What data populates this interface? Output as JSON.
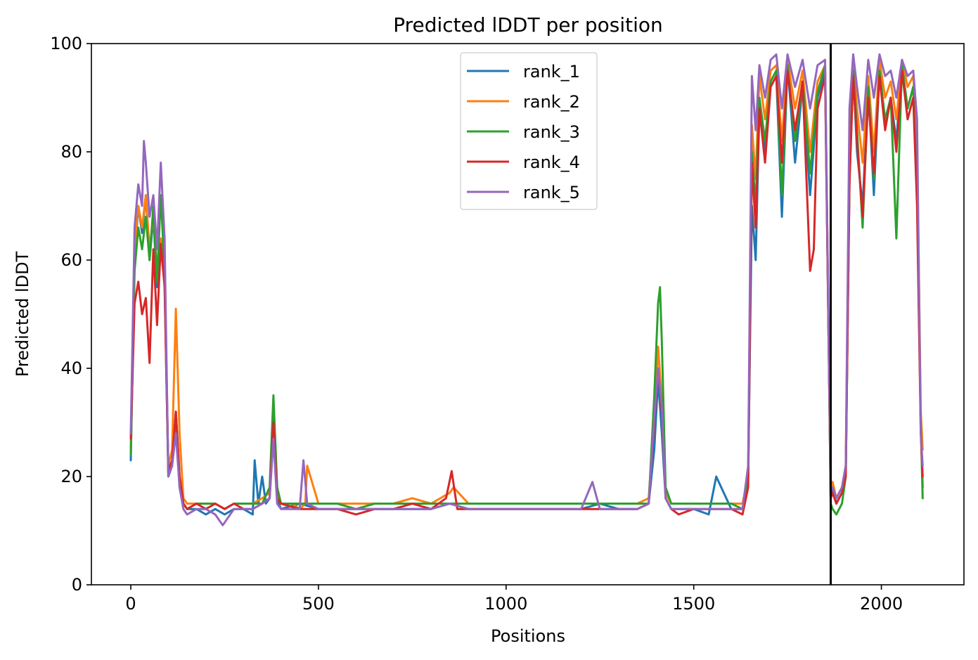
{
  "chart_data": {
    "type": "line",
    "title": "Predicted lDDT per position",
    "xlabel": "Positions",
    "ylabel": "Predicted lDDT",
    "xlim": [
      -105,
      2220
    ],
    "ylim": [
      0,
      100
    ],
    "xticks": [
      0,
      500,
      1000,
      1500,
      2000
    ],
    "yticks": [
      0,
      20,
      40,
      60,
      80,
      100
    ],
    "xtick_labels": [
      "0",
      "500",
      "1000",
      "1500",
      "2000"
    ],
    "ytick_labels": [
      "0",
      "20",
      "40",
      "60",
      "80",
      "100"
    ],
    "grid": false,
    "legend_position": "top-center",
    "vline_x": 1865,
    "vline_color": "#000000",
    "series": [
      {
        "name": "rank_1",
        "color": "#1f77b4",
        "x": [
          0,
          10,
          20,
          30,
          40,
          50,
          60,
          70,
          80,
          90,
          100,
          110,
          120,
          130,
          140,
          150,
          175,
          200,
          225,
          250,
          275,
          300,
          325,
          330,
          340,
          350,
          360,
          370,
          380,
          390,
          400,
          450,
          500,
          550,
          600,
          650,
          700,
          750,
          800,
          850,
          900,
          950,
          1000,
          1050,
          1100,
          1150,
          1200,
          1250,
          1300,
          1350,
          1380,
          1395,
          1405,
          1415,
          1425,
          1440,
          1460,
          1500,
          1540,
          1560,
          1600,
          1630,
          1645,
          1655,
          1665,
          1675,
          1690,
          1705,
          1720,
          1735,
          1750,
          1770,
          1790,
          1810,
          1830,
          1850,
          1865,
          1870,
          1880,
          1895,
          1905,
          1915,
          1925,
          1935,
          1950,
          1965,
          1980,
          1995,
          2010,
          2025,
          2040,
          2055,
          2070,
          2085,
          2095,
          2105,
          2110
        ],
        "y": [
          23,
          60,
          70,
          65,
          72,
          60,
          68,
          55,
          62,
          56,
          20,
          22,
          32,
          20,
          15,
          14,
          14,
          13,
          14,
          13,
          14,
          14,
          13,
          23,
          15,
          20,
          15,
          16,
          28,
          16,
          14,
          15,
          14,
          14,
          14,
          14,
          14,
          14,
          14,
          15,
          14,
          14,
          14,
          14,
          14,
          14,
          14,
          15,
          14,
          14,
          15,
          25,
          38,
          28,
          16,
          14,
          14,
          14,
          13,
          20,
          14,
          14,
          20,
          70,
          60,
          88,
          80,
          92,
          94,
          68,
          96,
          78,
          92,
          72,
          90,
          95,
          16,
          18,
          15,
          17,
          20,
          75,
          95,
          80,
          70,
          92,
          72,
          95,
          85,
          90,
          82,
          96,
          88,
          92,
          78,
          30,
          18
        ]
      },
      {
        "name": "rank_2",
        "color": "#ff7f0e",
        "x": [
          0,
          10,
          20,
          30,
          40,
          50,
          60,
          70,
          80,
          90,
          100,
          110,
          120,
          130,
          140,
          150,
          175,
          200,
          225,
          250,
          275,
          300,
          325,
          350,
          370,
          380,
          390,
          400,
          430,
          450,
          465,
          470,
          500,
          550,
          600,
          650,
          700,
          750,
          800,
          850,
          860,
          900,
          950,
          1000,
          1050,
          1100,
          1150,
          1200,
          1250,
          1300,
          1350,
          1380,
          1395,
          1405,
          1415,
          1425,
          1440,
          1460,
          1500,
          1540,
          1600,
          1630,
          1645,
          1655,
          1665,
          1675,
          1690,
          1705,
          1720,
          1735,
          1750,
          1770,
          1790,
          1810,
          1830,
          1850,
          1865,
          1870,
          1880,
          1895,
          1905,
          1915,
          1925,
          1935,
          1950,
          1965,
          1980,
          1995,
          2010,
          2025,
          2040,
          2055,
          2070,
          2085,
          2095,
          2105,
          2110
        ],
        "y": [
          25,
          62,
          70,
          66,
          72,
          62,
          68,
          58,
          64,
          58,
          22,
          25,
          51,
          28,
          16,
          15,
          15,
          14,
          15,
          14,
          15,
          15,
          15,
          16,
          17,
          30,
          18,
          15,
          15,
          14,
          15,
          22,
          15,
          15,
          15,
          15,
          15,
          16,
          15,
          17,
          18,
          15,
          15,
          15,
          15,
          15,
          15,
          15,
          15,
          15,
          15,
          16,
          30,
          44,
          34,
          17,
          15,
          15,
          15,
          15,
          15,
          15,
          20,
          85,
          75,
          94,
          86,
          95,
          96,
          82,
          97,
          88,
          95,
          80,
          93,
          96,
          18,
          19,
          16,
          18,
          22,
          80,
          97,
          88,
          78,
          94,
          80,
          97,
          90,
          93,
          86,
          97,
          92,
          94,
          82,
          32,
          25
        ]
      },
      {
        "name": "rank_3",
        "color": "#2ca02c",
        "x": [
          0,
          10,
          20,
          30,
          40,
          50,
          60,
          70,
          80,
          90,
          100,
          110,
          120,
          130,
          140,
          150,
          175,
          200,
          225,
          250,
          275,
          300,
          325,
          350,
          370,
          380,
          390,
          400,
          450,
          500,
          550,
          600,
          650,
          700,
          750,
          800,
          850,
          900,
          950,
          1000,
          1050,
          1100,
          1150,
          1200,
          1250,
          1300,
          1350,
          1380,
          1395,
          1405,
          1410,
          1415,
          1425,
          1440,
          1460,
          1500,
          1540,
          1600,
          1630,
          1645,
          1655,
          1665,
          1675,
          1690,
          1705,
          1720,
          1735,
          1750,
          1770,
          1790,
          1810,
          1830,
          1850,
          1865,
          1870,
          1880,
          1895,
          1905,
          1915,
          1925,
          1935,
          1950,
          1965,
          1980,
          1995,
          2010,
          2025,
          2040,
          2055,
          2070,
          2085,
          2095,
          2105,
          2110
        ],
        "y": [
          24,
          58,
          66,
          62,
          68,
          60,
          70,
          56,
          72,
          58,
          21,
          22,
          30,
          18,
          15,
          14,
          15,
          15,
          15,
          14,
          15,
          15,
          15,
          15,
          18,
          35,
          18,
          15,
          15,
          15,
          15,
          14,
          15,
          15,
          15,
          15,
          15,
          15,
          15,
          15,
          15,
          15,
          15,
          15,
          15,
          15,
          15,
          15,
          35,
          52,
          55,
          45,
          18,
          15,
          15,
          15,
          15,
          15,
          14,
          20,
          80,
          70,
          90,
          82,
          93,
          95,
          72,
          96,
          82,
          93,
          76,
          91,
          96,
          15,
          14,
          13,
          15,
          20,
          76,
          95,
          84,
          66,
          92,
          75,
          95,
          86,
          90,
          64,
          96,
          88,
          92,
          72,
          30,
          16
        ]
      },
      {
        "name": "rank_4",
        "color": "#d62728",
        "x": [
          0,
          10,
          20,
          30,
          40,
          50,
          60,
          70,
          80,
          90,
          100,
          110,
          120,
          130,
          140,
          150,
          175,
          200,
          225,
          250,
          275,
          300,
          325,
          350,
          370,
          380,
          390,
          400,
          450,
          500,
          550,
          600,
          650,
          700,
          750,
          800,
          840,
          855,
          870,
          900,
          950,
          1000,
          1050,
          1100,
          1150,
          1200,
          1250,
          1300,
          1350,
          1380,
          1395,
          1405,
          1415,
          1425,
          1440,
          1460,
          1500,
          1540,
          1600,
          1630,
          1645,
          1655,
          1665,
          1675,
          1690,
          1705,
          1720,
          1735,
          1750,
          1770,
          1790,
          1810,
          1820,
          1830,
          1850,
          1865,
          1870,
          1880,
          1895,
          1905,
          1915,
          1925,
          1935,
          1950,
          1965,
          1980,
          1995,
          2010,
          2025,
          2040,
          2055,
          2070,
          2085,
          2095,
          2105,
          2110
        ],
        "y": [
          27,
          52,
          56,
          50,
          53,
          41,
          62,
          48,
          63,
          55,
          21,
          23,
          32,
          20,
          15,
          14,
          15,
          14,
          15,
          14,
          15,
          14,
          14,
          15,
          16,
          30,
          16,
          15,
          14,
          14,
          14,
          13,
          14,
          14,
          15,
          14,
          16,
          21,
          14,
          14,
          14,
          14,
          14,
          14,
          14,
          14,
          14,
          14,
          14,
          15,
          30,
          40,
          32,
          16,
          14,
          13,
          14,
          14,
          14,
          13,
          18,
          78,
          66,
          88,
          78,
          92,
          94,
          78,
          95,
          84,
          93,
          58,
          62,
          88,
          94,
          16,
          17,
          15,
          17,
          20,
          74,
          94,
          82,
          68,
          90,
          76,
          94,
          84,
          90,
          80,
          95,
          86,
          90,
          70,
          28,
          20
        ]
      },
      {
        "name": "rank_5",
        "color": "#9467bd",
        "x": [
          0,
          10,
          20,
          30,
          35,
          40,
          50,
          60,
          70,
          80,
          90,
          100,
          110,
          120,
          130,
          140,
          150,
          175,
          200,
          225,
          245,
          275,
          300,
          325,
          350,
          370,
          380,
          390,
          400,
          450,
          460,
          470,
          500,
          550,
          600,
          650,
          700,
          750,
          800,
          850,
          900,
          950,
          1000,
          1050,
          1100,
          1150,
          1200,
          1230,
          1250,
          1300,
          1350,
          1380,
          1395,
          1405,
          1415,
          1425,
          1440,
          1460,
          1500,
          1540,
          1600,
          1630,
          1645,
          1655,
          1665,
          1675,
          1690,
          1705,
          1720,
          1735,
          1750,
          1770,
          1790,
          1810,
          1830,
          1850,
          1865,
          1870,
          1880,
          1895,
          1905,
          1915,
          1925,
          1935,
          1950,
          1965,
          1980,
          1995,
          2010,
          2025,
          2040,
          2055,
          2070,
          2085,
          2095,
          2105,
          2110
        ],
        "y": [
          28,
          66,
          74,
          70,
          82,
          78,
          68,
          72,
          62,
          78,
          64,
          20,
          22,
          28,
          18,
          14,
          13,
          14,
          14,
          13,
          11,
          14,
          14,
          14,
          15,
          16,
          27,
          15,
          14,
          14,
          23,
          15,
          14,
          14,
          14,
          14,
          14,
          14,
          14,
          15,
          14,
          14,
          14,
          14,
          14,
          14,
          14,
          19,
          14,
          14,
          14,
          15,
          31,
          40,
          33,
          16,
          14,
          14,
          14,
          14,
          14,
          14,
          22,
          94,
          84,
          96,
          90,
          97,
          98,
          88,
          98,
          92,
          97,
          88,
          96,
          97,
          18,
          18,
          16,
          18,
          22,
          88,
          98,
          92,
          84,
          97,
          90,
          98,
          94,
          95,
          90,
          97,
          94,
          95,
          86,
          28,
          22
        ]
      }
    ]
  }
}
